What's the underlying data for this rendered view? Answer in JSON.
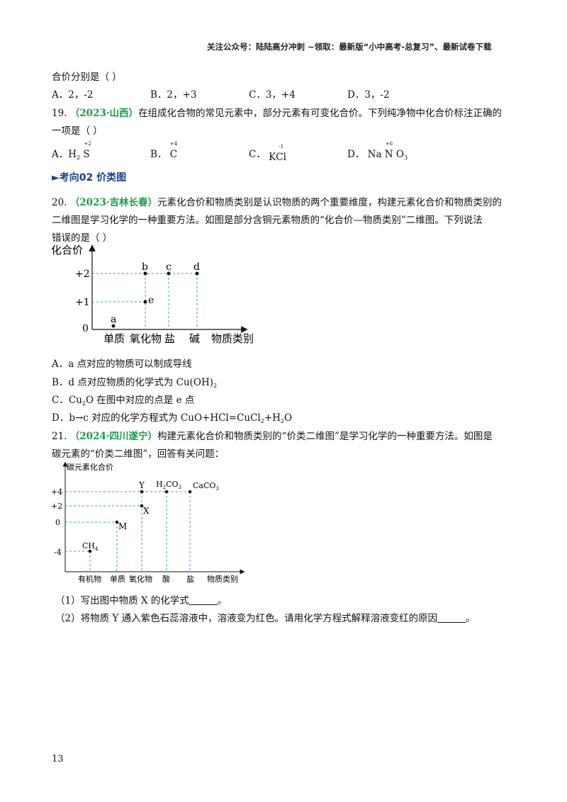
{
  "header": {
    "text": "关注公众号：陆陆高分冲刺  ~领取：最新版“小中高考-总复习”、最新试卷下载"
  },
  "q18": {
    "tail": "合价分别是（      ）",
    "options": [
      "A．2，-2",
      "B．2，+3",
      "C．3，+4",
      "D．3，-2"
    ]
  },
  "q19": {
    "number": "19.",
    "source": "（2023·山西）",
    "line1": "在组成化合物的常见元素中，部分元素有可变化合价。下列纯净物中化合价标注正确的",
    "line2": "一项是（      ）",
    "optA": {
      "label": "A．",
      "f1": "H",
      "f1sub": "2",
      "f2": "S",
      "val": "+2"
    },
    "optB": {
      "label": "B．",
      "f1": "C",
      "val": "+4"
    },
    "optC": {
      "label": "C．",
      "f1": "K",
      "f2": "Cl",
      "val": "-1"
    },
    "optD": {
      "label": "D．",
      "f1": "Na",
      "f2": "N",
      "f3": "O",
      "f3sub": "3",
      "val": "+6"
    }
  },
  "section": {
    "marker": "►",
    "title": "考向02  价类图"
  },
  "q20": {
    "number": "20.",
    "source": "（2023·吉林长春）",
    "line1": "元素化合价和物质类别是认识物质的两个重要维度，构建元素化合价和物质类别的",
    "line2": "二维图是学习化学的一种重要方法。如图是部分含铜元素物质的“化合价—物质类别”二维图。下列说法",
    "line3": "错误的是（      ）",
    "chart": {
      "ylabel": "化合价",
      "xlabel": "物质类别",
      "yticks": [
        "+2",
        "+1",
        "0"
      ],
      "categories": [
        "单质",
        "氧化物",
        "盐",
        "碱"
      ],
      "points": [
        {
          "label": "a",
          "category": "单质",
          "valence": 0
        },
        {
          "label": "b",
          "category": "氧化物",
          "valence": 2
        },
        {
          "label": "e",
          "category": "氧化物",
          "valence": 1
        },
        {
          "label": "c",
          "category": "盐",
          "valence": 2
        },
        {
          "label": "d",
          "category": "碱",
          "valence": 2
        }
      ]
    },
    "options": [
      "A．a 点对应的物质可以制成导线",
      "B．d 点对应物质的化学式为 Cu(OH)",
      "C．Cu",
      "D．b→c 对应的化学方程式为 CuO+HCl=CuCl"
    ],
    "optB_sub": "2",
    "optC_sub": "2",
    "optC_rest": "O 在图中对应的点是 e 点",
    "optD_sub": "2",
    "optD_rest": "+H",
    "optD_sub2": "2",
    "optD_end": "O"
  },
  "q21": {
    "number": "21.",
    "source": "（2024·四川遂宁）",
    "line1": "构建元素化合价和物质类别的“价类二维图”是学习化学的一种重要方法。如图是",
    "line2": "碳元素的“价类二维图”，回答有关问题：",
    "chart": {
      "ylabel": "碳元素化合价",
      "xlabel": "物质类别",
      "yticks": [
        "+4",
        "+2",
        "0",
        "-4"
      ],
      "categories": [
        "有机物",
        "单质",
        "氧化物",
        "酸",
        "盐"
      ],
      "points": [
        {
          "label": "CH4",
          "category": "有机物",
          "valence": -4
        },
        {
          "label": "M",
          "category": "单质",
          "valence": 0
        },
        {
          "label": "X",
          "category": "氧化物",
          "valence": 2
        },
        {
          "label": "Y",
          "category": "氧化物",
          "valence": 4
        },
        {
          "label": "H2CO3",
          "category": "酸",
          "valence": 4
        },
        {
          "label": "CaCO3",
          "category": "盐",
          "valence": 4
        }
      ]
    },
    "sub1": "（1）写出图中物质 X 的化学式",
    "sub1_end": "。",
    "sub2": "（2）将物质 Y 通入紫色石蕊溶液中，溶液变为红色。请用化学方程式解释溶液变红的原因",
    "sub2_end": "。"
  },
  "page_number": "13"
}
